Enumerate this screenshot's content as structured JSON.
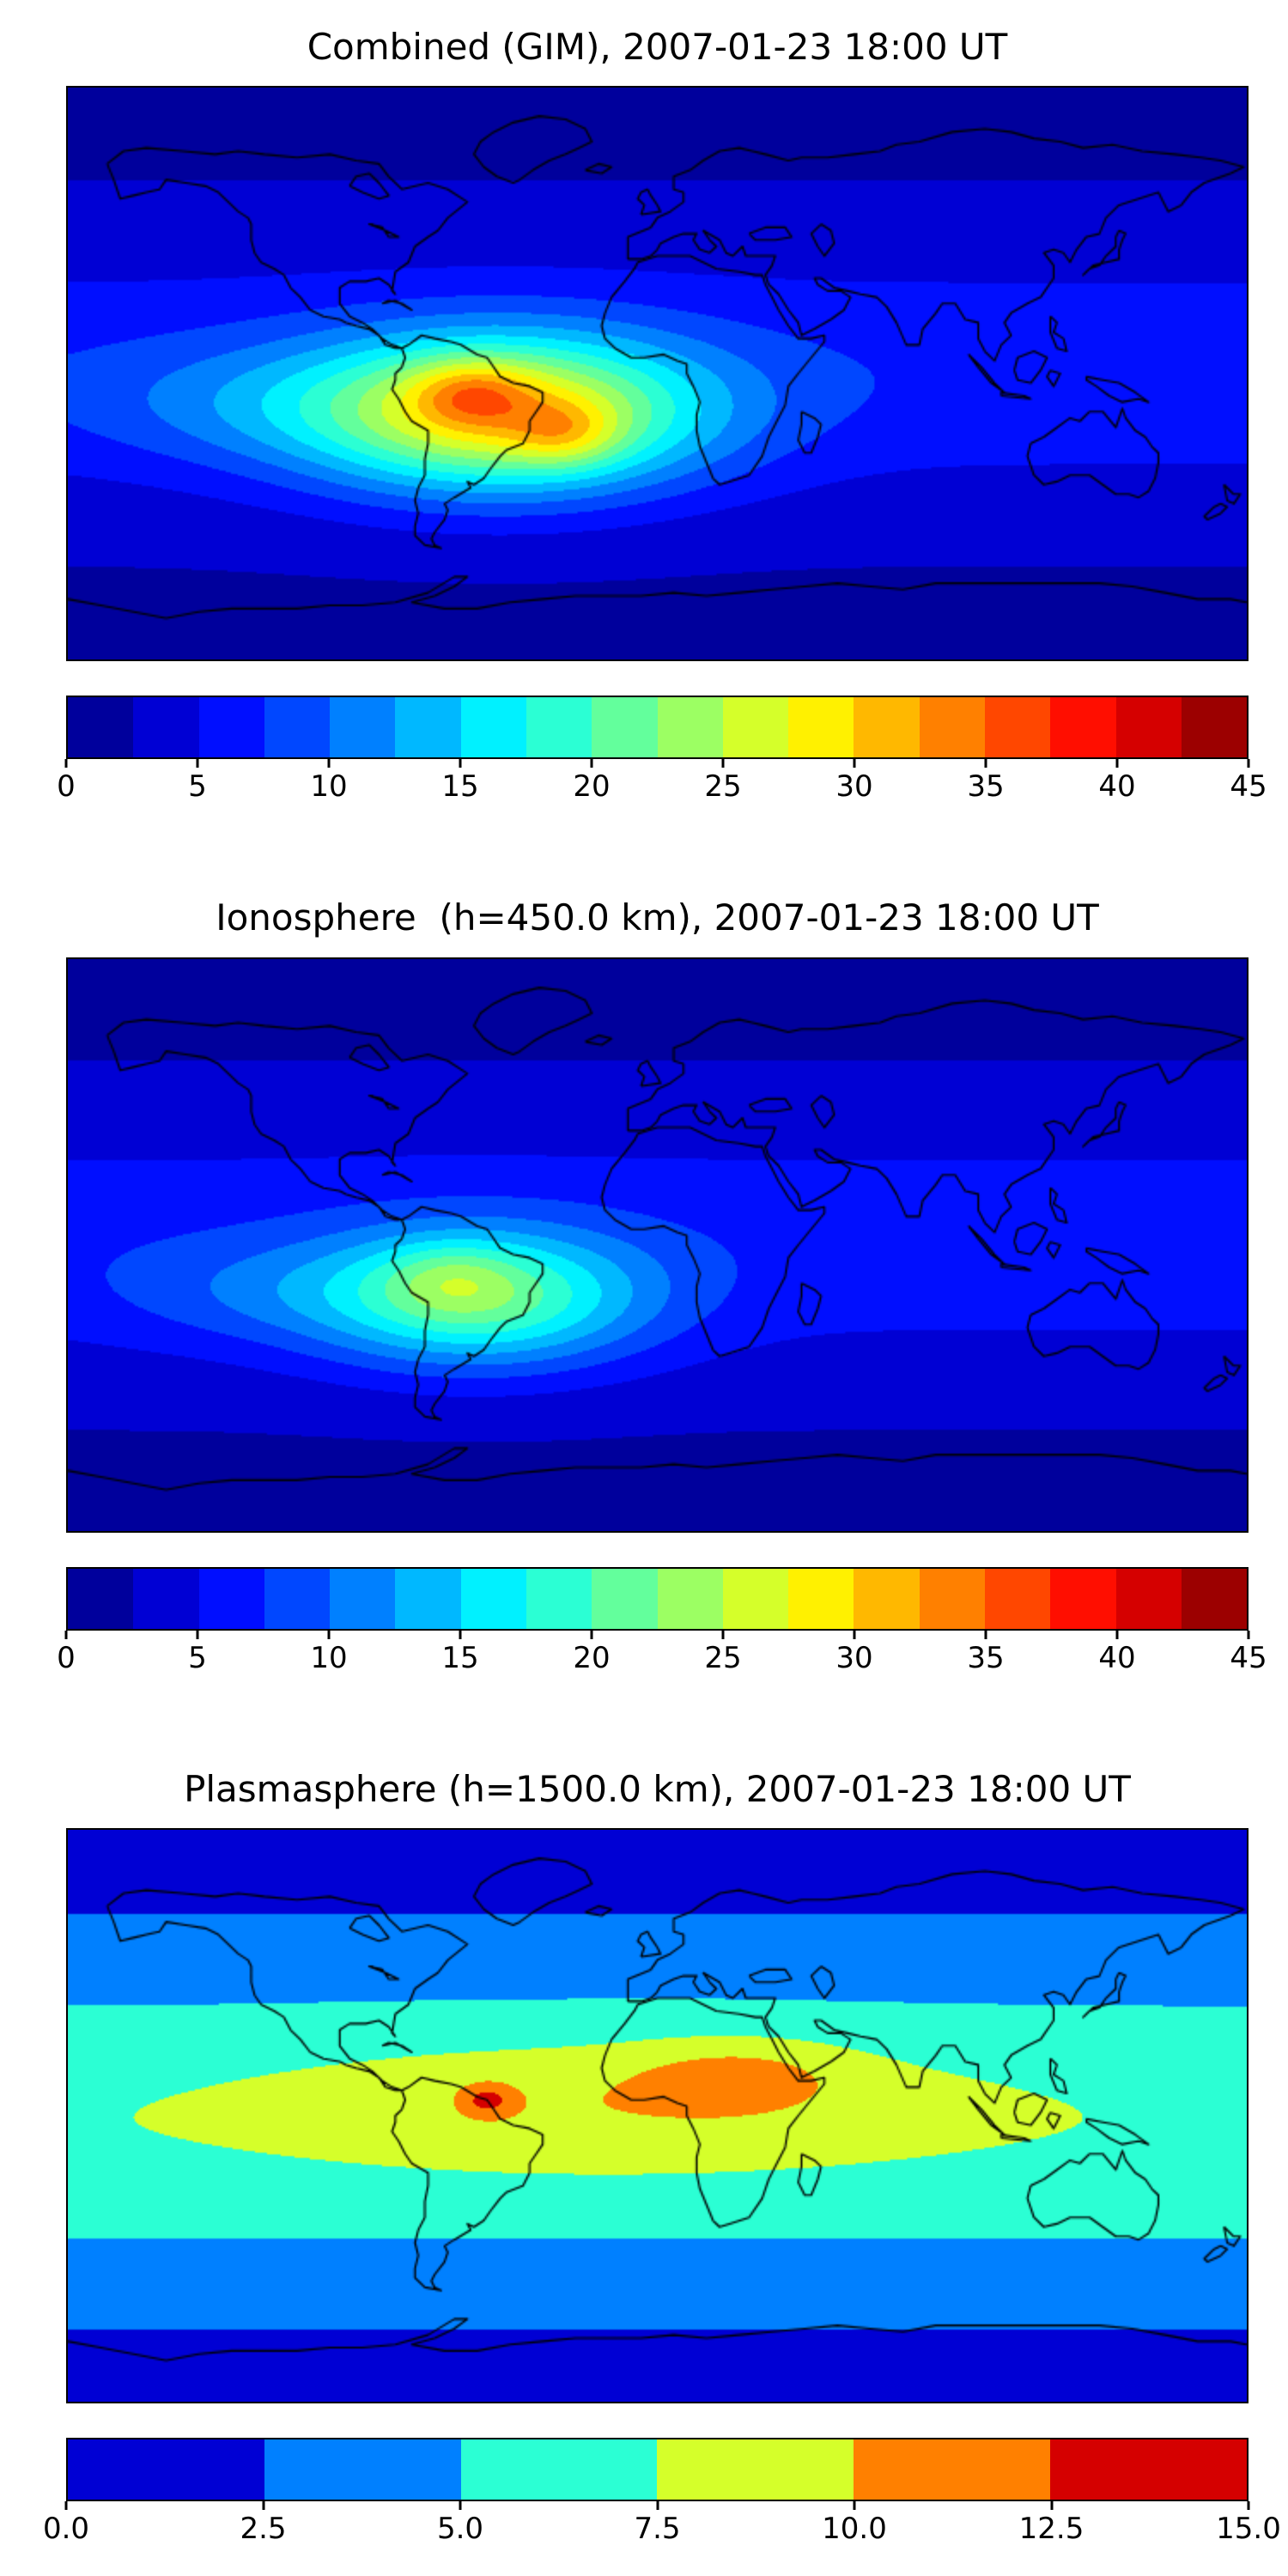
{
  "figure": {
    "background": "#ffffff",
    "n_panels": 3,
    "panel_kind": "filled-contour world map with horizontal colorbar"
  },
  "chart_data": [
    {
      "type": "heatmap",
      "subtype": "filled-contour-world-map",
      "title": "Combined (GIM), 2007-01-23 18:00 UT",
      "datetime_label": "2007-01-23 18:00 UT",
      "x_range": [
        -180,
        180
      ],
      "y_range": [
        -90,
        90
      ],
      "colormap": "jet",
      "levels": {
        "min": 0,
        "max": 45,
        "step": 2.5,
        "n_segments": 18
      },
      "colorbar_ticks": [
        "0",
        "5",
        "10",
        "15",
        "20",
        "25",
        "30",
        "35",
        "40",
        "45"
      ],
      "peak": {
        "value": 38,
        "lon": -52,
        "lat": -11
      },
      "field": {
        "base": {
          "polar": 2.0,
          "equator_amp": 5.0,
          "lat_center": 0,
          "lat_sigma": 40
        },
        "blobs": [
          {
            "lon": -48,
            "lat": -13,
            "amp": 24,
            "sx": 60,
            "sy": 24
          },
          {
            "lon": -57,
            "lat": -6,
            "amp": 7,
            "sx": 18,
            "sy": 10
          },
          {
            "lon": -28,
            "lat": -19,
            "amp": 6,
            "sx": 16,
            "sy": 10
          },
          {
            "lon": -130,
            "lat": -10,
            "amp": 3,
            "sx": 50,
            "sy": 18
          }
        ]
      }
    },
    {
      "type": "heatmap",
      "subtype": "filled-contour-world-map",
      "title": "Ionosphere  (h=450.0 km), 2007-01-23 18:00 UT",
      "datetime_label": "2007-01-23 18:00 UT",
      "x_range": [
        -180,
        180
      ],
      "y_range": [
        -90,
        90
      ],
      "colormap": "jet",
      "levels": {
        "min": 0,
        "max": 45,
        "step": 2.5,
        "n_segments": 18
      },
      "colorbar_ticks": [
        "0",
        "5",
        "10",
        "15",
        "20",
        "25",
        "30",
        "35",
        "40",
        "45"
      ],
      "peak": {
        "value": 26,
        "lon": -57,
        "lat": -15
      },
      "field": {
        "base": {
          "polar": 1.8,
          "equator_amp": 4.8,
          "lat_center": 0,
          "lat_sigma": 42
        },
        "blobs": [
          {
            "lon": -55,
            "lat": -17,
            "amp": 16,
            "sx": 50,
            "sy": 21
          },
          {
            "lon": -63,
            "lat": -10,
            "amp": 4,
            "sx": 20,
            "sy": 11
          },
          {
            "lon": -125,
            "lat": -15,
            "amp": 3,
            "sx": 45,
            "sy": 16
          }
        ]
      }
    },
    {
      "type": "heatmap",
      "subtype": "filled-contour-world-map",
      "title": "Plasmasphere (h=1500.0 km), 2007-01-23 18:00 UT",
      "datetime_label": "2007-01-23 18:00 UT",
      "x_range": [
        -180,
        180
      ],
      "y_range": [
        -90,
        90
      ],
      "colormap": "jet",
      "levels": {
        "min": 0,
        "max": 15,
        "step": 2.5,
        "n_segments": 6
      },
      "colorbar_ticks": [
        "0.0",
        "2.5",
        "5.0",
        "7.5",
        "10.0",
        "12.5",
        "15.0"
      ],
      "peak": {
        "value": 13,
        "lon": -52,
        "lat": 5
      },
      "field": {
        "base": {
          "polar": 1.0,
          "equator_amp": 6.2,
          "lat_center": -2,
          "lat_sigma": 55
        },
        "blobs": [
          {
            "lon": -15,
            "lat": 4,
            "amp": 2.6,
            "sx": 100,
            "sy": 21
          },
          {
            "lon": 25,
            "lat": 13,
            "amp": 2.8,
            "sx": 32,
            "sy": 11
          },
          {
            "lon": -52,
            "lat": 5,
            "amp": 4.2,
            "sx": 8,
            "sy": 5
          }
        ]
      }
    }
  ]
}
